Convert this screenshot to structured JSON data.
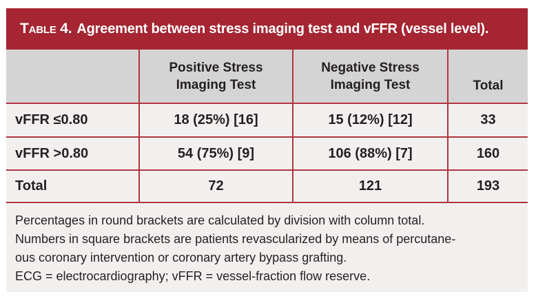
{
  "colors": {
    "accent_red": "#A52532",
    "divider_red": "#B23440",
    "header_gray": "#D5D4D4",
    "row_bg": "#F2F0EF",
    "title_text": "#FFFFFF",
    "body_text": "#231F20",
    "page_bg": "#FFFFFF"
  },
  "table": {
    "title_label": "Table 4.",
    "title_text": "Agreement between stress imaging test and vFFR (vessel level).",
    "columns": {
      "positive": {
        "line1": "Positive Stress",
        "line2": "Imaging Test"
      },
      "negative": {
        "line1": "Negative Stress",
        "line2": "Imaging Test"
      },
      "total": "Total"
    },
    "rows": [
      {
        "label": "vFFR ≤0.80",
        "positive": "18 (25%) [16]",
        "negative": "15 (12%) [12]",
        "total": "33"
      },
      {
        "label": "vFFR >0.80",
        "positive": "54 (75%) [9]",
        "negative": "106 (88%) [7]",
        "total": "160"
      },
      {
        "label": "Total",
        "positive": "72",
        "negative": "121",
        "total": "193"
      }
    ]
  },
  "footnotes": {
    "lines": [
      "Percentages in round brackets are calculated by division with column total.",
      "Numbers in square brackets are patients revascularized by means of percutane-",
      "ous coronary intervention or coronary artery bypass grafting.",
      "ECG = electrocardiography; vFFR = vessel-fraction flow reserve."
    ]
  },
  "chart_data": {
    "type": "table",
    "title": "TABLE 4. Agreement between stress imaging test and vFFR (vessel level).",
    "columns": [
      "",
      "Positive Stress Imaging Test",
      "Negative Stress Imaging Test",
      "Total"
    ],
    "rows": [
      [
        "vFFR ≤0.80",
        "18 (25%) [16]",
        "15 (12%) [12]",
        "33"
      ],
      [
        "vFFR >0.80",
        "54 (75%) [9]",
        "106 (88%) [7]",
        "160"
      ],
      [
        "Total",
        "72",
        "121",
        "193"
      ]
    ]
  }
}
